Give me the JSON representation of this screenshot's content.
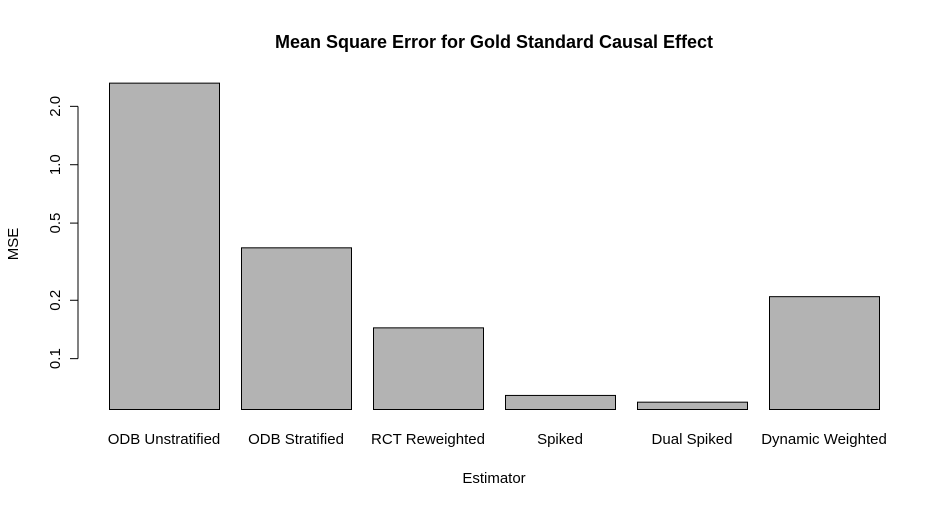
{
  "chart_data": {
    "type": "bar",
    "title": "Mean Square Error for Gold Standard Causal Effect",
    "xlabel": "Estimator",
    "ylabel": "MSE",
    "y_scale": "log",
    "ylim": [
      0.055,
      2.8
    ],
    "yticks": [
      0.1,
      0.2,
      0.5,
      1.0,
      2.0
    ],
    "ytick_labels": [
      "0.1",
      "0.2",
      "0.5",
      "1.0",
      "2.0"
    ],
    "categories": [
      "ODB Unstratified",
      "ODB Stratified",
      "RCT Reweighted",
      "Spiked",
      "Dual Spiked",
      "Dynamic Weighted"
    ],
    "values": [
      2.65,
      0.375,
      0.145,
      0.065,
      0.06,
      0.21
    ],
    "bar_color": "#b3b3b3",
    "grid": false
  }
}
